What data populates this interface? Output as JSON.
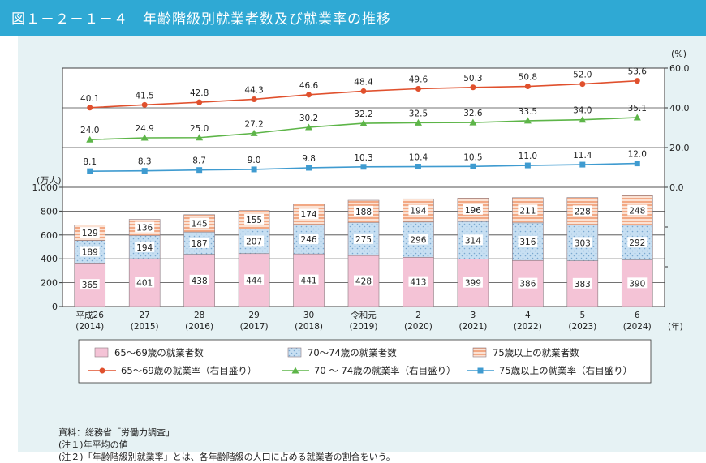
{
  "title": "図１－２－１－４　年齢階級別就業者数及び就業率の推移",
  "colors": {
    "header": "#2fa9d4",
    "panel": "#e6f2f4",
    "bar65": "#f4c3d6",
    "bar70": "#c7dff2",
    "bar75": "#f7c9b0",
    "line65": "#e0502d",
    "line70": "#5db548",
    "line75": "#3f9bd0"
  },
  "icons": [
    "pink-square-swatch",
    "dotted-blue-swatch",
    "striped-orange-swatch",
    "circle-marker",
    "triangle-marker",
    "square-marker"
  ],
  "chart_data": {
    "type": "bar+line",
    "left_unit": "(万人)",
    "right_unit": "(%)",
    "x_suffix": "(年)",
    "left_ylim": [
      0,
      1000
    ],
    "left_ticks": [
      "0",
      "200",
      "400",
      "600",
      "800",
      "1,000"
    ],
    "right_ylim": [
      0,
      60
    ],
    "right_ticks": [
      "0.0",
      "20.0",
      "40.0",
      "60.0"
    ],
    "categories": [
      {
        "era": "平成26",
        "year": "(2014)"
      },
      {
        "era": "27",
        "year": "(2015)"
      },
      {
        "era": "28",
        "year": "(2016)"
      },
      {
        "era": "29",
        "year": "(2017)"
      },
      {
        "era": "30",
        "year": "(2018)"
      },
      {
        "era": "令和元",
        "year": "(2019)"
      },
      {
        "era": "2",
        "year": "(2020)"
      },
      {
        "era": "3",
        "year": "(2021)"
      },
      {
        "era": "4",
        "year": "(2022)"
      },
      {
        "era": "5",
        "year": "(2023)"
      },
      {
        "era": "6",
        "year": "(2024)"
      }
    ],
    "bar_series": [
      {
        "name": "65～69歳の就業者数",
        "values": [
          365,
          401,
          438,
          444,
          441,
          428,
          413,
          399,
          386,
          383,
          390
        ]
      },
      {
        "name": "70～74歳の就業者数",
        "values": [
          189,
          194,
          187,
          207,
          246,
          275,
          296,
          314,
          316,
          303,
          292
        ]
      },
      {
        "name": "75歳以上の就業者数",
        "values": [
          129,
          136,
          145,
          155,
          174,
          188,
          194,
          196,
          211,
          228,
          248
        ]
      }
    ],
    "line_series": [
      {
        "name": "65～69歳の就業率（右目盛り）",
        "values": [
          40.1,
          41.5,
          42.8,
          44.3,
          46.6,
          48.4,
          49.6,
          50.3,
          50.8,
          52.0,
          53.6
        ],
        "labels": [
          "40.1",
          "41.5",
          "42.8",
          "44.3",
          "46.6",
          "48.4",
          "49.6",
          "50.3",
          "50.8",
          "52.0",
          "53.6"
        ]
      },
      {
        "name": "70 ～ 74歳の就業率（右目盛り）",
        "values": [
          24.0,
          24.9,
          25.0,
          27.2,
          30.2,
          32.2,
          32.5,
          32.6,
          33.5,
          34.0,
          35.1
        ],
        "labels": [
          "24.0",
          "24.9",
          "25.0",
          "27.2",
          "30.2",
          "32.2",
          "32.5",
          "32.6",
          "33.5",
          "34.0",
          "35.1"
        ]
      },
      {
        "name": "75歳以上の就業率（右目盛り）",
        "values": [
          8.1,
          8.3,
          8.7,
          9.0,
          9.8,
          10.3,
          10.4,
          10.5,
          11.0,
          11.4,
          12.0
        ],
        "labels": [
          "8.1",
          "8.3",
          "8.7",
          "9.0",
          "9.8",
          "10.3",
          "10.4",
          "10.5",
          "11.0",
          "11.4",
          "12.0"
        ]
      }
    ]
  },
  "notes": [
    "資料：総務省「労働力調査」",
    "(注１)年平均の値",
    "(注２)「年齢階級別就業率」とは、各年齢階級の人口に占める就業者の割合をいう。"
  ]
}
